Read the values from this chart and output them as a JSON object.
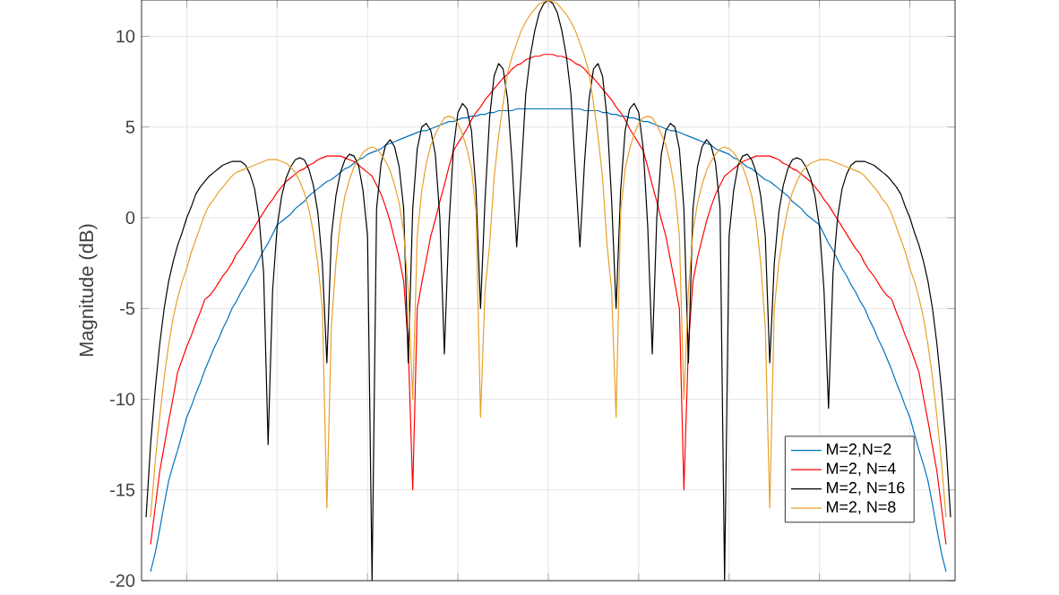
{
  "chart_data": {
    "type": "line",
    "ylabel": "Magnitude (dB)",
    "ylim": [
      -20,
      12
    ],
    "yticks": [
      -20,
      -15,
      -10,
      -5,
      0,
      5,
      10
    ],
    "tick_labels": "y",
    "grid": true,
    "legend": "bottom right",
    "marker": "none",
    "line_style": "solid",
    "categories": [
      null,
      null,
      null,
      null,
      null,
      null,
      null,
      null,
      null,
      null,
      null,
      null,
      null,
      null,
      null,
      null,
      null,
      null,
      null,
      null,
      null,
      null,
      null,
      null,
      null,
      null,
      null,
      null,
      null,
      null,
      null,
      null,
      null,
      null,
      null,
      null,
      null,
      null,
      null,
      null,
      null,
      null,
      null,
      null,
      null,
      null,
      null,
      null,
      null,
      null,
      null,
      null,
      null,
      null,
      null,
      null,
      null,
      null,
      null,
      null,
      null,
      null,
      null,
      null,
      null,
      null,
      null,
      null,
      null,
      null,
      null,
      null,
      null,
      null,
      null,
      null,
      null,
      null,
      null,
      null,
      null,
      null,
      null,
      null,
      null,
      null,
      null,
      null,
      null,
      null,
      null,
      null,
      null,
      null,
      null,
      null,
      null,
      null,
      null,
      null,
      null,
      null,
      null,
      null,
      null,
      null,
      null,
      null,
      null,
      null,
      null,
      null,
      null,
      null,
      null,
      null,
      null,
      null,
      null,
      null,
      null,
      null,
      null,
      null,
      null,
      null,
      null,
      null,
      null,
      null,
      null,
      null,
      null,
      null,
      null,
      null,
      null,
      null,
      null,
      null,
      null,
      null,
      null,
      null,
      null,
      null,
      null,
      null,
      null,
      null,
      null,
      null,
      null,
      null,
      null,
      null,
      null,
      null,
      null,
      null,
      null,
      null,
      null,
      null,
      null,
      null,
      null,
      null,
      null,
      null,
      null,
      null,
      null,
      null,
      null,
      null,
      null,
      null,
      null
    ],
    "series": [
      {
        "name": "M=2,N=2",
        "color": "#0072bd",
        "values": [
          null,
          -19.5,
          -18.5,
          -17.2,
          -15.8,
          -14.5,
          -13.6,
          -12.8,
          -11.9,
          -11,
          -10.4,
          -9.7,
          -9.1,
          -8.4,
          -7.8,
          -7.2,
          -6.7,
          -6.1,
          -5.6,
          -5.0,
          -4.6,
          -4.1,
          -3.7,
          -3.2,
          -2.8,
          -2.3,
          -1.8,
          -1.4,
          -0.9,
          -0.4,
          -0.2,
          0.0,
          0.2,
          0.5,
          0.7,
          0.9,
          1.2,
          1.4,
          1.6,
          1.8,
          2.0,
          2.1,
          2.3,
          2.5,
          2.7,
          2.8,
          3.0,
          3.2,
          3.3,
          3.5,
          3.6,
          3.7,
          3.8,
          4.0,
          4.1,
          4.2,
          4.3,
          4.4,
          4.5,
          4.6,
          4.7,
          4.8,
          4.8,
          4.9,
          5.0,
          5.1,
          5.2,
          5.3,
          5.3,
          5.4,
          5.5,
          5.5,
          5.6,
          5.6,
          5.7,
          5.7,
          5.8,
          5.8,
          5.9,
          5.9,
          5.9,
          5.9,
          6.0,
          6.0,
          6.0,
          6.0,
          6.0,
          6.0,
          6.0,
          6.0,
          6.0,
          6.0,
          6.0,
          6.0,
          6.0,
          6.0,
          6.0,
          5.9,
          5.9,
          5.9,
          5.9,
          5.8,
          5.8,
          5.7,
          5.7,
          5.6,
          5.6,
          5.5,
          5.5,
          5.4,
          5.3,
          5.3,
          5.2,
          5.1,
          5.0,
          4.9,
          4.8,
          4.8,
          4.7,
          4.6,
          4.5,
          4.4,
          4.3,
          4.2,
          4.1,
          4.0,
          3.8,
          3.7,
          3.6,
          3.5,
          3.3,
          3.2,
          3.0,
          2.8,
          2.7,
          2.5,
          2.3,
          2.1,
          2.0,
          1.8,
          1.6,
          1.4,
          1.2,
          0.9,
          0.7,
          0.5,
          0.2,
          0.0,
          -0.2,
          -0.4,
          -0.9,
          -1.4,
          -1.8,
          -2.3,
          -2.8,
          -3.2,
          -3.7,
          -4.1,
          -4.6,
          -5.0,
          -5.6,
          -6.1,
          -6.7,
          -7.2,
          -7.8,
          -8.4,
          -9.1,
          -9.7,
          -10.4,
          -11,
          -11.9,
          -12.8,
          -13.6,
          -14.5,
          -15.8,
          -17.2,
          -18.5,
          -19.5,
          null
        ]
      },
      {
        "name": "M=2, N=4",
        "color": "#ff0000",
        "values": [
          null,
          -18,
          -16,
          -14,
          -12.6,
          -11.2,
          -9.9,
          -8.5,
          -7.8,
          -7.1,
          -6.5,
          -5.8,
          -5.2,
          -4.5,
          -4.3,
          -4.0,
          -3.6,
          -3.2,
          -2.9,
          -2.5,
          -2.0,
          -1.7,
          -1.3,
          -0.9,
          -0.5,
          -0.1,
          0.3,
          0.7,
          1.0,
          1.4,
          1.7,
          2.0,
          2.2,
          2.4,
          2.6,
          2.7,
          2.9,
          3.0,
          3.2,
          3.3,
          3.4,
          3.4,
          3.4,
          3.4,
          3.3,
          3.2,
          3.1,
          2.9,
          2.7,
          2.5,
          2.3,
          1.8,
          1.3,
          0.6,
          -0.2,
          -1.2,
          -2.2,
          -3.5,
          -7,
          -15,
          -5.0,
          -3.6,
          -2.3,
          -1.0,
          -0.1,
          0.9,
          1.8,
          2.8,
          3.7,
          4.1,
          4.5,
          4.9,
          5.4,
          5.8,
          6.1,
          6.5,
          6.8,
          7.1,
          7.4,
          7.7,
          7.9,
          8.2,
          8.4,
          8.5,
          8.7,
          8.8,
          8.9,
          8.9,
          9.0,
          9.0,
          9.0,
          8.9,
          8.9,
          8.8,
          8.7,
          8.5,
          8.4,
          8.2,
          7.9,
          7.7,
          7.4,
          7.1,
          6.8,
          6.5,
          6.1,
          5.8,
          5.4,
          4.9,
          4.5,
          4.1,
          3.7,
          2.8,
          1.8,
          0.9,
          -0.1,
          -1.0,
          -2.3,
          -3.6,
          -5.0,
          -15,
          -7,
          -3.5,
          -2.2,
          -1.2,
          -0.2,
          0.6,
          1.3,
          1.8,
          2.3,
          2.5,
          2.7,
          2.9,
          3.1,
          3.2,
          3.3,
          3.4,
          3.4,
          3.4,
          3.4,
          3.3,
          3.2,
          3.0,
          2.9,
          2.7,
          2.6,
          2.4,
          2.2,
          2.0,
          1.7,
          1.4,
          1.0,
          0.7,
          0.3,
          -0.1,
          -0.5,
          -0.9,
          -1.3,
          -1.7,
          -2.0,
          -2.5,
          -2.9,
          -3.2,
          -3.6,
          -4.0,
          -4.3,
          -4.5,
          -5.2,
          -5.8,
          -6.5,
          -7.1,
          -7.8,
          -8.5,
          -9.9,
          -11.2,
          -12.6,
          -14,
          -16,
          -18,
          null
        ]
      },
      {
        "name": "M=2, N=16",
        "color": "#000000",
        "values": [
          -16.5,
          -12.5,
          -9.5,
          -7.0,
          -5.0,
          -3.5,
          -2.4,
          -1.5,
          -0.8,
          0,
          0.6,
          1.3,
          1.7,
          2.0,
          2.3,
          2.5,
          2.7,
          2.9,
          3.0,
          3.1,
          3.1,
          3.1,
          2.9,
          2.4,
          1.6,
          0,
          -3,
          -12.5,
          -4,
          -0.5,
          1.2,
          2.2,
          2.8,
          3.2,
          3.3,
          3.2,
          2.7,
          1.8,
          0.3,
          -2.5,
          -8,
          -1.0,
          1.2,
          2.5,
          3.2,
          3.5,
          3.4,
          2.9,
          1.5,
          -1.0,
          -20,
          0.5,
          3.0,
          4.0,
          4.3,
          3.9,
          2.8,
          0.5,
          -8,
          0.5,
          3.8,
          5.0,
          5.2,
          4.8,
          3.5,
          0,
          -7.5,
          -0.5,
          3.8,
          5.8,
          6.3,
          6.0,
          4.8,
          1.5,
          -5,
          1.0,
          5.5,
          7.8,
          8.5,
          8.2,
          6.5,
          3.0,
          -1.6,
          2.5,
          6.8,
          8.9,
          10.3,
          11.3,
          11.8,
          12,
          11.8,
          11.3,
          10.3,
          8.9,
          6.8,
          2.5,
          -1.6,
          3.0,
          6.5,
          8.2,
          8.5,
          7.8,
          5.5,
          1.0,
          -5,
          1.5,
          4.8,
          6.0,
          6.3,
          5.8,
          3.8,
          -0.5,
          -7.5,
          0,
          3.5,
          4.8,
          5.2,
          5.0,
          3.8,
          0.5,
          -8,
          0.5,
          2.8,
          3.9,
          4.3,
          4.0,
          3.0,
          0.5,
          -20,
          -1.0,
          1.5,
          2.9,
          3.4,
          3.5,
          3.2,
          2.5,
          1.2,
          -1.0,
          -8,
          -2.5,
          0.3,
          1.8,
          2.7,
          3.2,
          3.3,
          3.2,
          2.8,
          2.2,
          1.2,
          -0.5,
          -4,
          -10.5,
          -3,
          0,
          1.6,
          2.4,
          2.9,
          3.1,
          3.1,
          3.1,
          3.0,
          2.9,
          2.7,
          2.5,
          2.3,
          2.0,
          1.7,
          1.3,
          0.6,
          0,
          -0.8,
          -1.5,
          -2.4,
          -3.5,
          -5.0,
          -7.0,
          -9.5,
          -12.5,
          -16.5
        ]
      },
      {
        "name": "M=2, N=8",
        "color": "#e8a02a",
        "values": [
          null,
          -16.5,
          -13.5,
          -11,
          -8.8,
          -7.0,
          -5.5,
          -4.4,
          -3.5,
          -2.8,
          -1.9,
          -1.2,
          -0.5,
          0.2,
          0.7,
          1.0,
          1.4,
          1.7,
          2.0,
          2.3,
          2.5,
          2.6,
          2.7,
          2.8,
          2.9,
          3.0,
          3.1,
          3.2,
          3.2,
          3.2,
          3.1,
          3.0,
          2.8,
          2.5,
          2.0,
          1.4,
          0.5,
          -0.8,
          -2.5,
          -5,
          -16,
          -6,
          -2.5,
          -0.2,
          1.2,
          2.1,
          2.8,
          3.2,
          3.6,
          3.8,
          3.9,
          3.8,
          3.5,
          3.1,
          2.6,
          1.8,
          0.8,
          -0.8,
          -4,
          -10,
          -1.0,
          1.5,
          3.0,
          4.0,
          4.6,
          5.1,
          5.5,
          5.6,
          5.5,
          5.2,
          4.6,
          3.8,
          2.7,
          0.3,
          -11,
          -4,
          -1.5,
          2.2,
          4.5,
          6.3,
          8.0,
          8.9,
          9.6,
          10.3,
          10.8,
          11.2,
          11.5,
          11.8,
          11.9,
          12,
          11.9,
          11.8,
          11.5,
          11.2,
          10.8,
          10.3,
          9.6,
          8.9,
          8.0,
          6.3,
          4.5,
          2.2,
          -1.5,
          -4,
          -11,
          0.3,
          2.7,
          3.8,
          4.6,
          5.2,
          5.5,
          5.6,
          5.5,
          5.1,
          4.6,
          4.0,
          3.0,
          1.5,
          -1.0,
          -10,
          -4,
          -0.8,
          0.8,
          1.8,
          2.6,
          3.1,
          3.5,
          3.8,
          3.9,
          3.8,
          3.6,
          3.2,
          2.8,
          2.1,
          1.2,
          -0.2,
          -2.5,
          -6,
          -16,
          -5,
          -2.5,
          -0.8,
          0.5,
          1.4,
          2.0,
          2.5,
          2.8,
          3.0,
          3.1,
          3.2,
          3.2,
          3.2,
          3.1,
          3.0,
          2.9,
          2.8,
          2.7,
          2.6,
          2.5,
          2.3,
          2.0,
          1.7,
          1.4,
          1.0,
          0.7,
          0.2,
          -0.5,
          -1.2,
          -1.9,
          -2.8,
          -3.5,
          -4.4,
          -5.5,
          -7.0,
          -8.8,
          -11,
          -13.5,
          -16.5,
          null
        ]
      }
    ]
  }
}
